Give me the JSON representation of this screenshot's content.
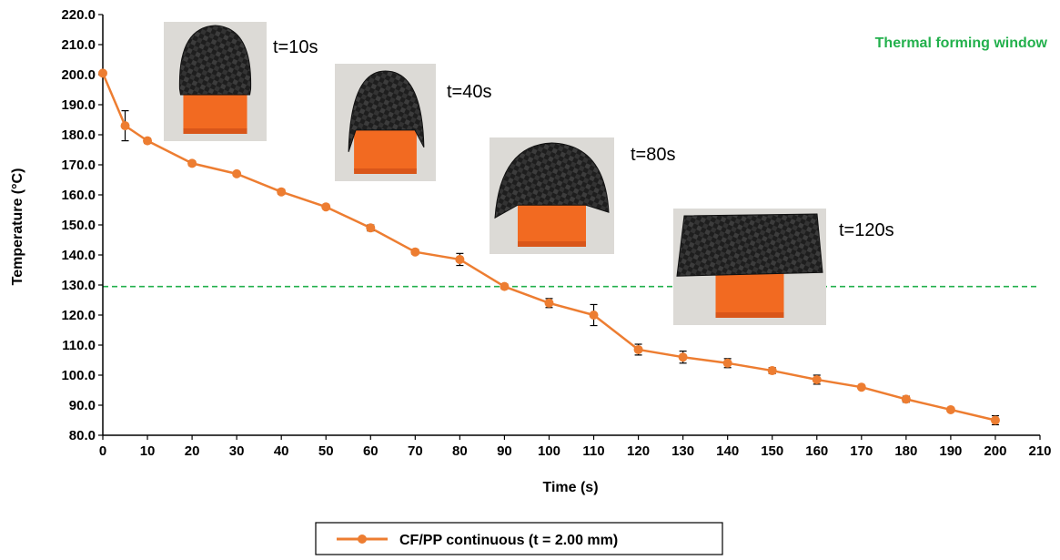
{
  "chart_data": {
    "type": "line",
    "xlabel": "Time (s)",
    "ylabel": "Temperature (°C)",
    "xlim": [
      0,
      210
    ],
    "ylim": [
      80,
      220
    ],
    "x_ticks": [
      0,
      10,
      20,
      30,
      40,
      50,
      60,
      70,
      80,
      90,
      100,
      110,
      120,
      130,
      140,
      150,
      160,
      170,
      180,
      190,
      200,
      210
    ],
    "y_ticks": [
      80,
      90,
      100,
      110,
      120,
      130,
      140,
      150,
      160,
      170,
      180,
      190,
      200,
      210,
      220
    ],
    "y_tick_labels": [
      "80.0",
      "90.0",
      "100.0",
      "110.0",
      "120.0",
      "130.0",
      "140.0",
      "150.0",
      "160.0",
      "170.0",
      "180.0",
      "190.0",
      "200.0",
      "210.0",
      "220.0"
    ],
    "grid": false,
    "legend_position": "bottom-center",
    "series": [
      {
        "name": "CF/PP continuous (t = 2.00 mm)",
        "color": "#ED7D31",
        "x": [
          0,
          5,
          10,
          20,
          30,
          40,
          50,
          60,
          70,
          80,
          90,
          100,
          110,
          120,
          130,
          140,
          150,
          160,
          170,
          180,
          190,
          200
        ],
        "y": [
          200.5,
          183,
          178,
          170.5,
          167,
          161,
          156,
          149,
          141,
          138.5,
          129.5,
          124,
          120,
          108.5,
          106,
          104,
          101.5,
          98.5,
          96,
          92,
          88.5,
          85
        ],
        "error": [
          0,
          5,
          0.8,
          0.8,
          0.5,
          0.8,
          0.5,
          1,
          0.8,
          2,
          0.8,
          1.5,
          3.5,
          1.8,
          2,
          1.5,
          1,
          1.5,
          0.5,
          1,
          0.5,
          1.5
        ]
      }
    ],
    "reference_line": {
      "y": 129.5,
      "label": "Thermal forming window",
      "color": "#22B04C"
    },
    "annotations": [
      {
        "label": "t=10s"
      },
      {
        "label": "t=40s"
      },
      {
        "label": "t=80s"
      },
      {
        "label": "t=120s"
      }
    ]
  }
}
